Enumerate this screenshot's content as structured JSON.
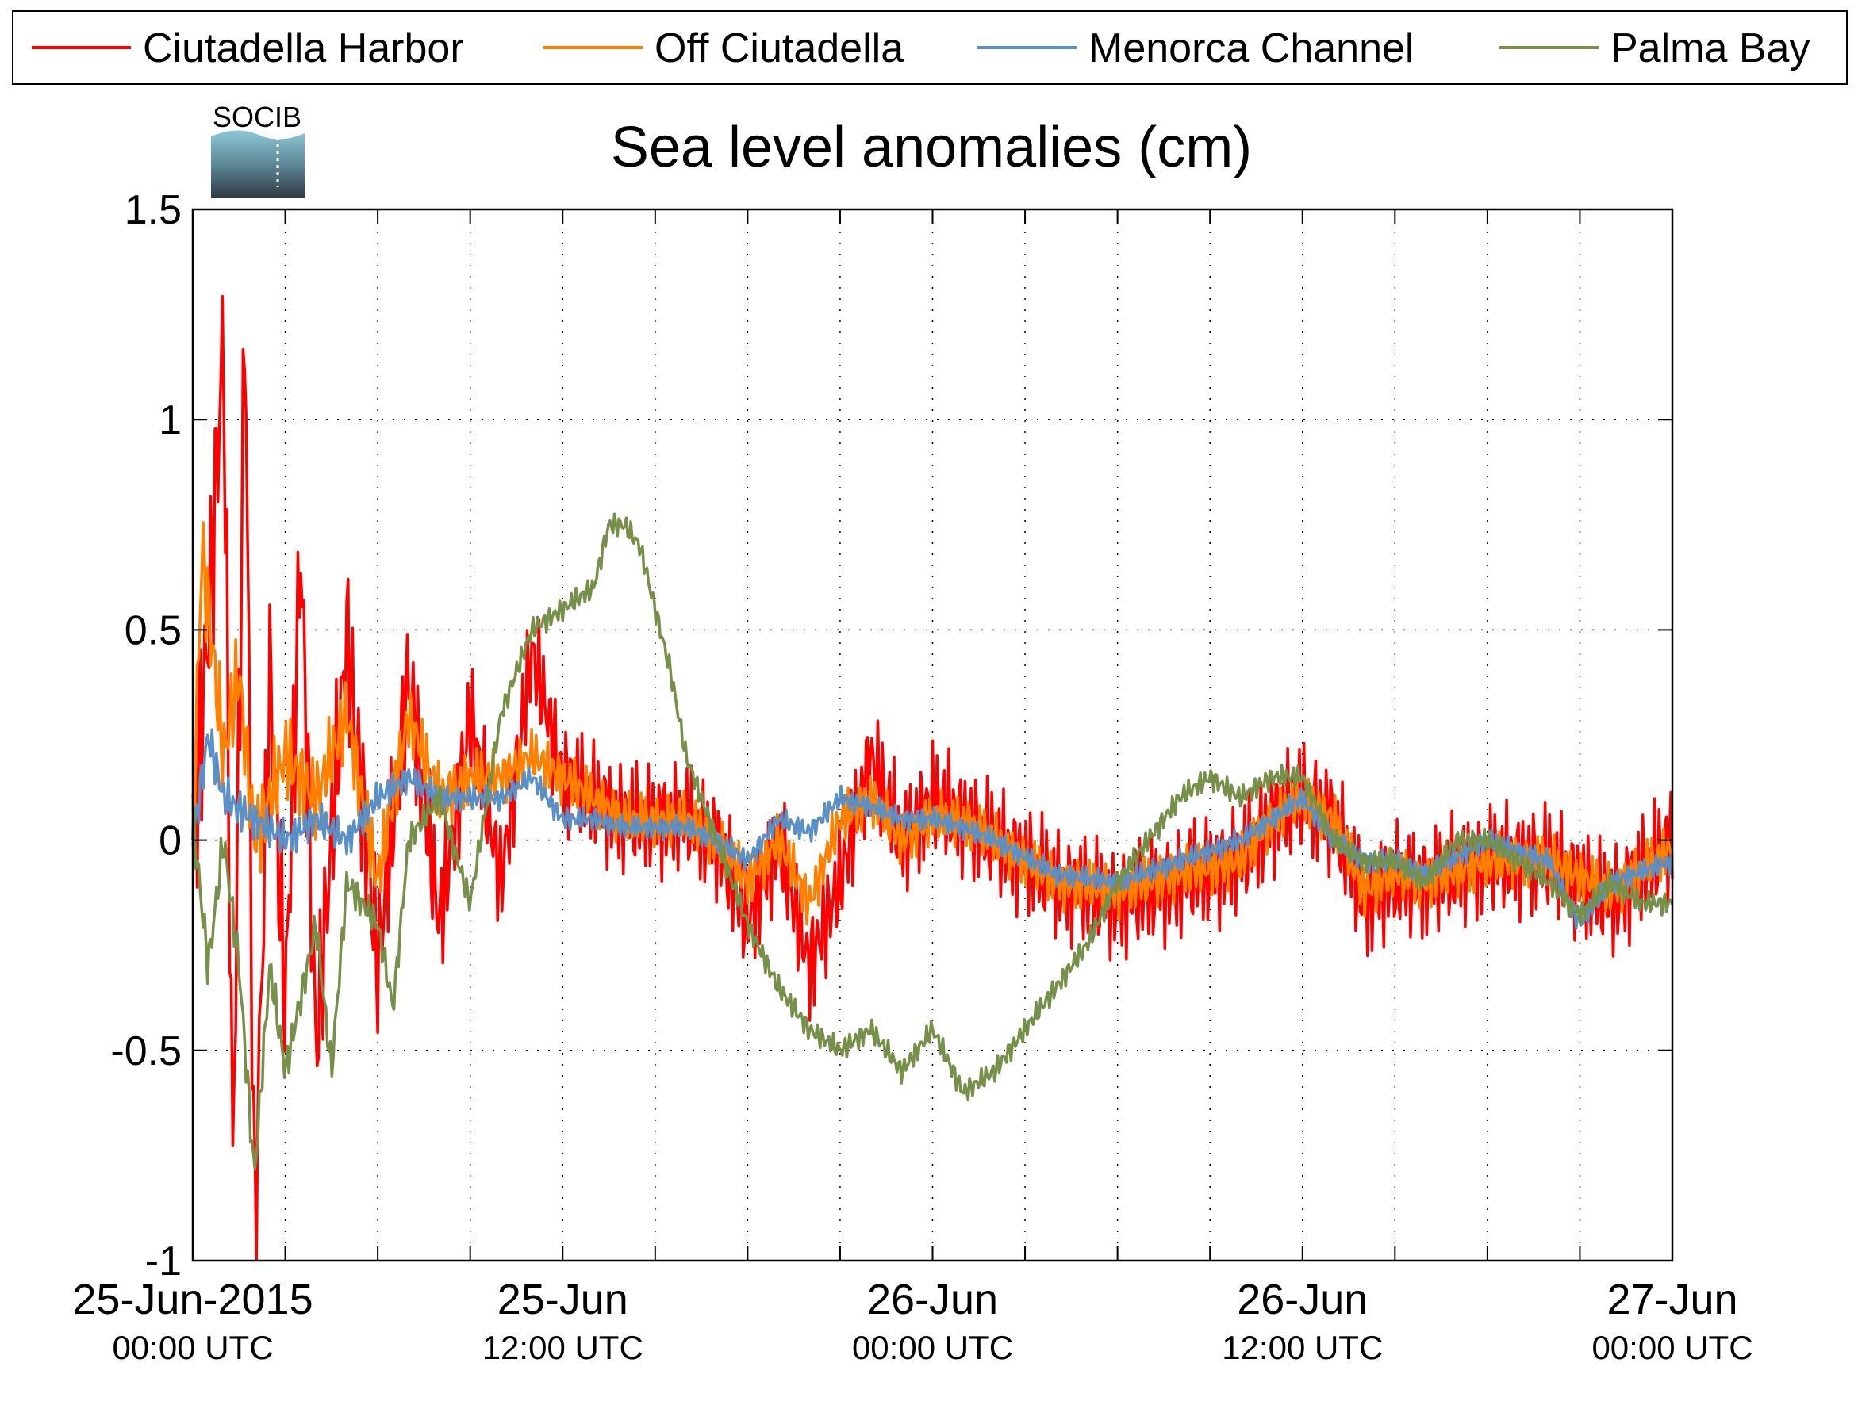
{
  "chart_data": {
    "type": "line",
    "title": "Sea level anomalies (cm)",
    "logo_text": "SOCIB",
    "xlabel": "",
    "ylabel": "",
    "x_range_hours": [
      0,
      48
    ],
    "ylim": [
      -1,
      1.5
    ],
    "grid": true,
    "legend_placement": "top",
    "y_ticks": [
      "1.5",
      "1",
      "0.5",
      "0",
      "-0.5",
      "-1"
    ],
    "x_ticks": [
      {
        "hour": 0,
        "date": "25-Jun-2015",
        "time": "00:00 UTC"
      },
      {
        "hour": 12,
        "date": "25-Jun",
        "time": "12:00 UTC"
      },
      {
        "hour": 24,
        "date": "26-Jun",
        "time": "00:00 UTC"
      },
      {
        "hour": 36,
        "date": "26-Jun",
        "time": "12:00 UTC"
      },
      {
        "hour": 48,
        "date": "27-Jun",
        "time": "00:00 UTC"
      }
    ],
    "series": [
      {
        "name": "Ciutadella Harbor",
        "color": "#ff0000",
        "noise": 0.15,
        "points": [
          [
            0,
            0
          ],
          [
            0.5,
            0.5
          ],
          [
            1,
            1.2
          ],
          [
            1.3,
            -0.8
          ],
          [
            1.7,
            1.3
          ],
          [
            2,
            -0.95
          ],
          [
            2.5,
            0.4
          ],
          [
            3,
            -0.4
          ],
          [
            3.5,
            0.7
          ],
          [
            4,
            -0.5
          ],
          [
            5,
            0.5
          ],
          [
            6,
            -0.3
          ],
          [
            7,
            0.4
          ],
          [
            8,
            -0.2
          ],
          [
            9,
            0.3
          ],
          [
            10,
            -0.1
          ],
          [
            11,
            0.45
          ],
          [
            12,
            0.15
          ],
          [
            14,
            0.05
          ],
          [
            16,
            0.05
          ],
          [
            17,
            0.0
          ],
          [
            18,
            -0.2
          ],
          [
            19,
            0.0
          ],
          [
            20,
            -0.3
          ],
          [
            21,
            -0.1
          ],
          [
            22,
            0.2
          ],
          [
            23,
            0.0
          ],
          [
            24,
            0.1
          ],
          [
            25,
            0.05
          ],
          [
            26,
            0.0
          ],
          [
            28,
            -0.1
          ],
          [
            30,
            -0.15
          ],
          [
            32,
            -0.1
          ],
          [
            34,
            -0.05
          ],
          [
            35,
            0.05
          ],
          [
            36,
            0.1
          ],
          [
            37,
            0.05
          ],
          [
            38,
            -0.15
          ],
          [
            39,
            -0.1
          ],
          [
            40,
            -0.1
          ],
          [
            42,
            -0.05
          ],
          [
            44,
            -0.05
          ],
          [
            46,
            -0.15
          ],
          [
            48,
            0.0
          ]
        ]
      },
      {
        "name": "Off Ciutadella",
        "color": "#ff8000",
        "noise": 0.07,
        "points": [
          [
            0,
            0
          ],
          [
            0.3,
            0.7
          ],
          [
            1,
            0.2
          ],
          [
            1.5,
            0.4
          ],
          [
            2,
            0.0
          ],
          [
            3,
            0.2
          ],
          [
            4,
            0.1
          ],
          [
            5,
            0.3
          ],
          [
            6,
            -0.1
          ],
          [
            7,
            0.3
          ],
          [
            8,
            0.1
          ],
          [
            9,
            0.15
          ],
          [
            10,
            0.15
          ],
          [
            11,
            0.2
          ],
          [
            12,
            0.15
          ],
          [
            14,
            0.05
          ],
          [
            16,
            0.05
          ],
          [
            17,
            0.0
          ],
          [
            18,
            -0.1
          ],
          [
            19,
            0.0
          ],
          [
            20,
            -0.15
          ],
          [
            21,
            0.05
          ],
          [
            22,
            0.1
          ],
          [
            23,
            0.0
          ],
          [
            24,
            0.05
          ],
          [
            25,
            0.05
          ],
          [
            26,
            0.0
          ],
          [
            28,
            -0.1
          ],
          [
            30,
            -0.12
          ],
          [
            32,
            -0.08
          ],
          [
            34,
            -0.05
          ],
          [
            35,
            0.05
          ],
          [
            36,
            0.1
          ],
          [
            37,
            0.05
          ],
          [
            38,
            -0.12
          ],
          [
            39,
            -0.08
          ],
          [
            40,
            -0.1
          ],
          [
            42,
            -0.05
          ],
          [
            44,
            -0.05
          ],
          [
            46,
            -0.12
          ],
          [
            48,
            -0.02
          ]
        ]
      },
      {
        "name": "Menorca Channel",
        "color": "#5b90c6",
        "noise": 0.03,
        "points": [
          [
            0,
            0
          ],
          [
            0.5,
            0.25
          ],
          [
            1,
            0.1
          ],
          [
            2,
            0.05
          ],
          [
            3,
            0.0
          ],
          [
            4,
            0.05
          ],
          [
            5,
            0.0
          ],
          [
            6,
            0.1
          ],
          [
            7,
            0.15
          ],
          [
            8,
            0.1
          ],
          [
            9,
            0.1
          ],
          [
            10,
            0.1
          ],
          [
            11,
            0.15
          ],
          [
            12,
            0.05
          ],
          [
            13,
            0.05
          ],
          [
            14,
            0.03
          ],
          [
            16,
            0.03
          ],
          [
            17,
            0.0
          ],
          [
            18,
            -0.05
          ],
          [
            19,
            0.05
          ],
          [
            20,
            0.02
          ],
          [
            21,
            0.1
          ],
          [
            22,
            0.08
          ],
          [
            23,
            0.05
          ],
          [
            24,
            0.05
          ],
          [
            25,
            0.03
          ],
          [
            26,
            0.0
          ],
          [
            28,
            -0.08
          ],
          [
            30,
            -0.1
          ],
          [
            32,
            -0.05
          ],
          [
            34,
            0.0
          ],
          [
            35,
            0.05
          ],
          [
            36,
            0.1
          ],
          [
            37,
            0.0
          ],
          [
            38,
            -0.05
          ],
          [
            39,
            -0.05
          ],
          [
            40,
            -0.08
          ],
          [
            42,
            0.0
          ],
          [
            44,
            -0.05
          ],
          [
            45,
            -0.2
          ],
          [
            46,
            -0.1
          ],
          [
            48,
            -0.05
          ]
        ]
      },
      {
        "name": "Palma Bay",
        "color": "#76904a",
        "noise": 0.03,
        "points": [
          [
            0,
            0.05
          ],
          [
            0.5,
            -0.3
          ],
          [
            1,
            0.0
          ],
          [
            1.5,
            -0.3
          ],
          [
            2,
            -0.8
          ],
          [
            2.5,
            -0.3
          ],
          [
            3,
            -0.55
          ],
          [
            4,
            -0.2
          ],
          [
            4.5,
            -0.55
          ],
          [
            5,
            -0.1
          ],
          [
            6,
            -0.2
          ],
          [
            6.5,
            -0.4
          ],
          [
            7,
            0.0
          ],
          [
            8,
            0.1
          ],
          [
            9,
            -0.15
          ],
          [
            10,
            0.3
          ],
          [
            11,
            0.5
          ],
          [
            12,
            0.55
          ],
          [
            13,
            0.6
          ],
          [
            13.5,
            0.75
          ],
          [
            14,
            0.75
          ],
          [
            14.5,
            0.7
          ],
          [
            15,
            0.55
          ],
          [
            15.5,
            0.4
          ],
          [
            16,
            0.2
          ],
          [
            17,
            0.0
          ],
          [
            18,
            -0.2
          ],
          [
            19,
            -0.35
          ],
          [
            20,
            -0.45
          ],
          [
            21,
            -0.5
          ],
          [
            22,
            -0.45
          ],
          [
            23,
            -0.55
          ],
          [
            24,
            -0.45
          ],
          [
            25,
            -0.6
          ],
          [
            26,
            -0.55
          ],
          [
            27,
            -0.45
          ],
          [
            28,
            -0.35
          ],
          [
            29,
            -0.25
          ],
          [
            30,
            -0.1
          ],
          [
            31,
            0.0
          ],
          [
            32,
            0.1
          ],
          [
            33,
            0.15
          ],
          [
            34,
            0.1
          ],
          [
            35,
            0.15
          ],
          [
            36,
            0.15
          ],
          [
            37,
            0.0
          ],
          [
            38,
            -0.05
          ],
          [
            39,
            -0.05
          ],
          [
            40,
            -0.1
          ],
          [
            41,
            0.0
          ],
          [
            42,
            0.0
          ],
          [
            43,
            -0.05
          ],
          [
            44,
            -0.1
          ],
          [
            45,
            -0.18
          ],
          [
            46,
            -0.1
          ],
          [
            47,
            -0.15
          ],
          [
            48,
            -0.15
          ]
        ]
      }
    ]
  }
}
